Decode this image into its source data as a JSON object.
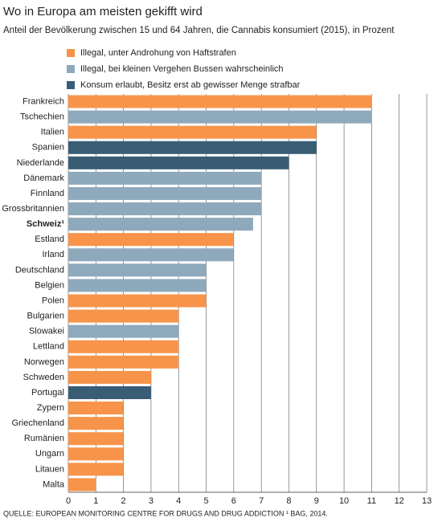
{
  "chart_data": {
    "type": "bar",
    "orientation": "horizontal",
    "title": "Wo in Europa am meisten gekifft wird",
    "subtitle": "Anteil der Bevölkerung zwischen 15 und 64 Jahren, die Cannabis konsumiert (2015), in Prozent",
    "source": "QUELLE: EUROPEAN MONITORING CENTRE FOR DRUGS AND DRUG ADDICTION ¹ BAG, 2014.",
    "categories": [
      "Frankreich",
      "Tschechien",
      "Italien",
      "Spanien",
      "Niederlande",
      "Dänemark",
      "Finnland",
      "Grossbritannien",
      "Schweiz¹",
      "Estland",
      "Irland",
      "Deutschland",
      "Belgien",
      "Polen",
      "Bulgarien",
      "Slowakei",
      "Lettland",
      "Norwegen",
      "Schweden",
      "Portugal",
      "Zypern",
      "Griechenland",
      "Rumänien",
      "Ungarn",
      "Litauen",
      "Malta"
    ],
    "bold_categories": [
      8
    ],
    "series": [
      {
        "name": "Illegal, unter Androhung von Haftstrafen",
        "color": "#f7944a",
        "values": [
          11,
          null,
          9,
          null,
          null,
          null,
          null,
          null,
          null,
          6,
          null,
          null,
          null,
          5,
          4,
          null,
          4,
          4,
          3,
          null,
          2,
          2,
          2,
          2,
          2,
          1
        ]
      },
      {
        "name": "Illegal, bei kleinen Vergehen Bussen wahrscheinlich",
        "color": "#8fa9bc",
        "values": [
          null,
          11,
          null,
          null,
          null,
          7,
          7,
          7,
          6.7,
          null,
          6,
          5,
          5,
          null,
          null,
          4,
          null,
          null,
          null,
          null,
          null,
          null,
          null,
          null,
          null,
          null
        ]
      },
      {
        "name": "Konsum erlaubt, Besitz erst ab gewisser Menge strafbar",
        "color": "#3a5d76",
        "values": [
          null,
          null,
          null,
          9,
          8,
          null,
          null,
          null,
          null,
          null,
          null,
          null,
          null,
          null,
          null,
          null,
          null,
          null,
          null,
          3,
          null,
          null,
          null,
          null,
          null,
          null
        ]
      }
    ],
    "xlim": [
      0,
      13
    ],
    "xticks": [
      0,
      1,
      2,
      3,
      4,
      5,
      6,
      7,
      8,
      9,
      10,
      11,
      12,
      13
    ],
    "grid": true
  }
}
